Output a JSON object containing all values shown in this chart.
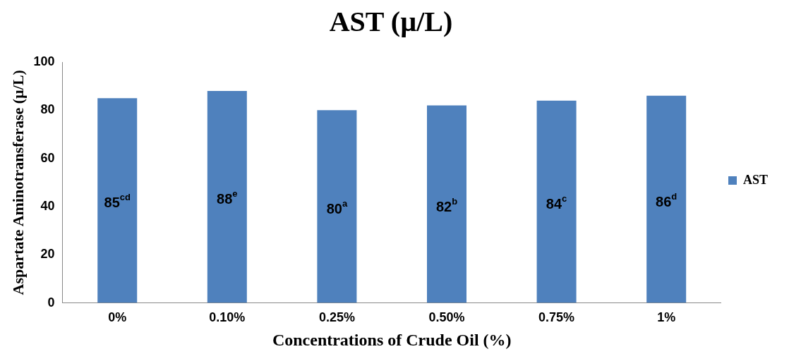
{
  "chart_data": {
    "type": "bar",
    "title": "AST (µ/L)",
    "xlabel": "Concentrations of Crude Oil (%)",
    "ylabel": "Aspartate Aminotransferase (µ/L)",
    "categories": [
      "0%",
      "0.10%",
      "0.25%",
      "0.50%",
      "0.75%",
      "1%"
    ],
    "series": [
      {
        "name": "AST",
        "color": "#4f81bd",
        "values": [
          85,
          88,
          80,
          82,
          84,
          86
        ],
        "value_labels": [
          "85$^{cd}$",
          "88$^{e}$",
          "80$^{a}$",
          "82$^{b}$",
          "84$^{c}$",
          "86$^{d}$"
        ]
      }
    ],
    "ylim": [
      0,
      100
    ],
    "yticks": [
      0,
      20,
      40,
      60,
      80,
      100
    ],
    "grid": false,
    "legend": "right"
  }
}
